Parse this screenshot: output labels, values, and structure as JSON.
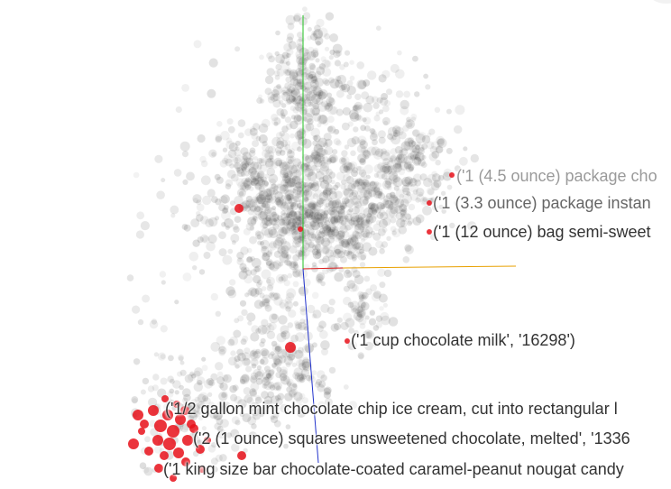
{
  "labels": {
    "l1": "('1 (4.5 ounce) package cho",
    "l2": "('1 (3.3 ounce) package instan",
    "l3": "('1 (12 ounce) bag semi-sweet",
    "l4": "('1 cup chocolate milk', '16298')",
    "l5": "('1/2 gallon mint chocolate chip ice cream, cut into rectangular l",
    "l6": "('2 (1 ounce) squares unsweetened chocolate, melted', '1336",
    "l7": "('1 king size bar chocolate-coated caramel-peanut nougat candy"
  },
  "colors": {
    "point": "#333333",
    "highlight": "#e8101a",
    "axis_x": "#e8a000",
    "axis_y": "#22c222",
    "axis_z": "#2233cc",
    "axis_x_origin": "#dd2222"
  }
}
